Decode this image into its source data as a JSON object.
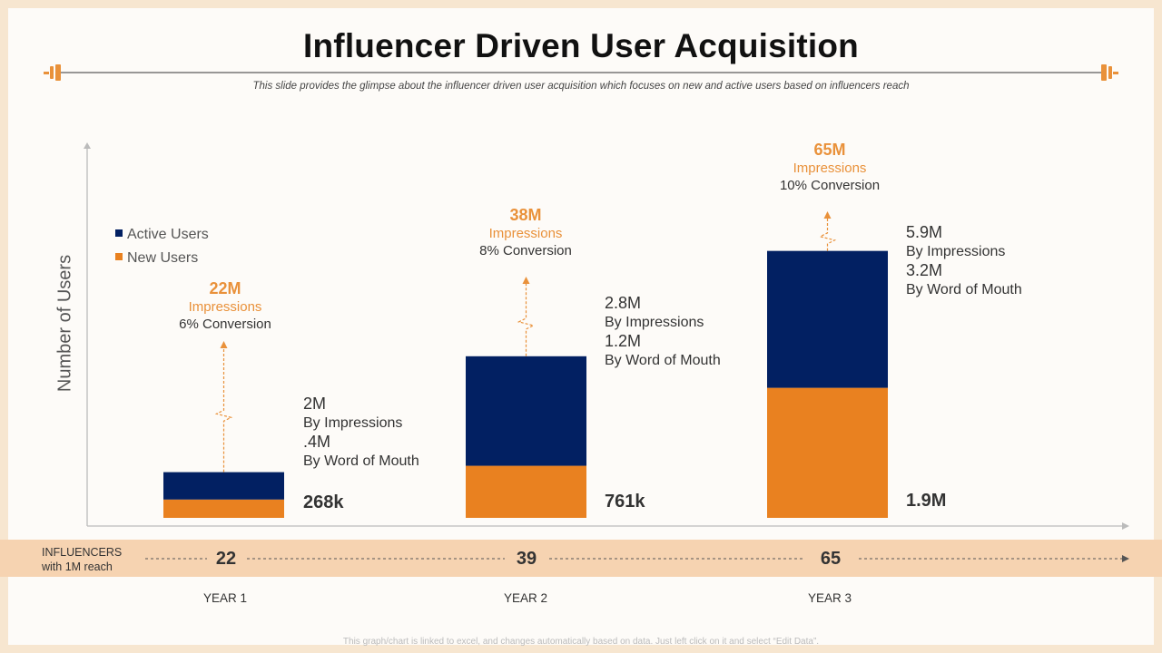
{
  "header": {
    "title": "Influencer Driven User Acquisition",
    "subtitle": "This slide provides the glimpse about the influencer driven user acquisition which focuses on new and active users based on influencers reach"
  },
  "colors": {
    "active": "#022062",
    "new": "#e98120",
    "accent": "#e9913a",
    "band": "#f6d3b1"
  },
  "chart_data": {
    "type": "bar",
    "stacked": true,
    "ylabel": "Number  of Users",
    "categories": [
      "YEAR 1",
      "YEAR 2",
      "YEAR 3"
    ],
    "series": [
      {
        "name": "New Users",
        "values": [
          268,
          761,
          1900
        ]
      },
      {
        "name": "Active Users",
        "values": [
          400,
          1600,
          2000
        ]
      }
    ],
    "ylim": [
      0,
      5300
    ],
    "legend": [
      "Active Users",
      "New Users"
    ],
    "new_user_labels": [
      "268k",
      "761k",
      "1.9M"
    ],
    "callouts": [
      {
        "big": "22M",
        "impressions": "Impressions",
        "conversion": "6% Conversion",
        "impressions_value": "2M",
        "impressions_label": "By Impressions",
        "wom_value": ".4M",
        "wom_label": "By Word of Mouth"
      },
      {
        "big": "38M",
        "impressions": "Impressions",
        "conversion": "8% Conversion",
        "impressions_value": "2.8M",
        "impressions_label": "By Impressions",
        "wom_value": "1.2M",
        "wom_label": "By Word of Mouth"
      },
      {
        "big": "65M",
        "impressions": "Impressions",
        "conversion": "10% Conversion",
        "impressions_value": "5.9M",
        "impressions_label": "By Impressions",
        "wom_value": "3.2M",
        "wom_label": "By Word of Mouth"
      }
    ],
    "influencers": {
      "label_line1": "INFLUENCERS",
      "label_line2": "with  1M reach",
      "values": [
        "22",
        "39",
        "65"
      ]
    }
  },
  "footer": "This graph/chart is linked to excel, and changes automatically based on data. Just left click on it and select “Edit Data”."
}
